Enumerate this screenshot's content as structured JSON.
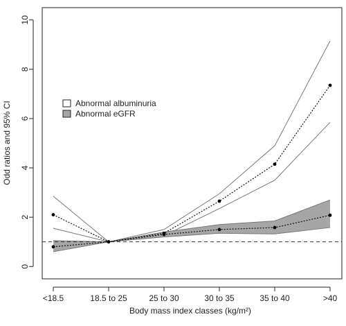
{
  "chart_data": {
    "type": "line",
    "title": "",
    "xlabel": "Body mass index classes (kg/m²)",
    "ylabel": "Odd ratios and 95% CI",
    "categories": [
      "<18.5",
      "18.5 to 25",
      "25 to 30",
      "30 to 35",
      "35 to 40",
      ">40"
    ],
    "ylim": [
      -0.5,
      10.5
    ],
    "yticks": [
      0,
      2,
      4,
      6,
      8,
      10
    ],
    "reference_line": 1,
    "grid": false,
    "legend_position": "left",
    "series": [
      {
        "name": "Abnormal albuminuria",
        "band_fill": "#ffffff",
        "values": [
          2.1,
          1.0,
          1.35,
          2.65,
          4.15,
          7.35
        ],
        "lower": [
          1.55,
          1.0,
          1.25,
          2.35,
          3.5,
          5.85
        ],
        "upper": [
          2.85,
          1.0,
          1.5,
          2.95,
          4.9,
          9.15
        ]
      },
      {
        "name": "Abnormal eGFR",
        "band_fill": "#a6a6a6",
        "values": [
          0.8,
          1.0,
          1.3,
          1.5,
          1.58,
          2.08
        ],
        "lower": [
          0.6,
          1.0,
          1.2,
          1.35,
          1.32,
          1.58
        ],
        "upper": [
          1.05,
          1.0,
          1.4,
          1.7,
          1.85,
          2.7
        ]
      }
    ]
  }
}
